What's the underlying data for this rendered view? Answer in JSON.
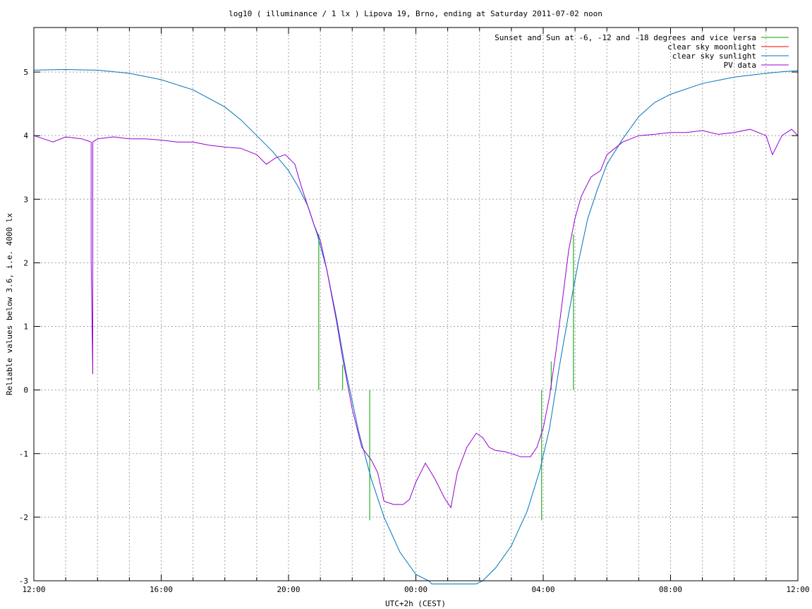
{
  "chart_data": {
    "type": "line",
    "title": "log10 ( illuminance / 1 lx ) Lipova 19, Brno, ending at Saturday 2011-07-02 noon",
    "xlabel": "UTC+2h (CEST)",
    "ylabel": "Reliable values below 3.6, i.e. 4000 lx",
    "x_unit": "hours since 2011-07-01 12:00",
    "xlim": [
      0,
      24
    ],
    "ylim": [
      -3,
      5.7
    ],
    "x_ticks": [
      {
        "x": 0,
        "label": "12:00"
      },
      {
        "x": 4,
        "label": "16:00"
      },
      {
        "x": 8,
        "label": "20:00"
      },
      {
        "x": 12,
        "label": "00:00"
      },
      {
        "x": 16,
        "label": "04:00"
      },
      {
        "x": 20,
        "label": "08:00"
      },
      {
        "x": 24,
        "label": "12:00"
      }
    ],
    "x_minor_step": 1,
    "y_ticks": [
      {
        "y": -3,
        "label": "-3"
      },
      {
        "y": -2,
        "label": "-2"
      },
      {
        "y": -1,
        "label": "-1"
      },
      {
        "y": 0,
        "label": "0"
      },
      {
        "y": 1,
        "label": "1"
      },
      {
        "y": 2,
        "label": "2"
      },
      {
        "y": 3,
        "label": "3"
      },
      {
        "y": 4,
        "label": "4"
      },
      {
        "y": 5,
        "label": "5"
      }
    ],
    "grid": true,
    "legend_position": "top-right",
    "series": [
      {
        "name": "Sunset and Sun at -6, -12 and -18 degrees and vice versa",
        "color": "#00a000",
        "kind": "vertical-markers",
        "markers": [
          {
            "x": 8.95,
            "y0": 0,
            "y1": 2.45
          },
          {
            "x": 9.7,
            "y0": 0,
            "y1": 0.4
          },
          {
            "x": 10.55,
            "y0": -2.05,
            "y1": 0
          },
          {
            "x": 15.95,
            "y0": -2.05,
            "y1": 0
          },
          {
            "x": 16.25,
            "y0": 0,
            "y1": 0.45
          },
          {
            "x": 16.95,
            "y0": 0,
            "y1": 2.45
          }
        ]
      },
      {
        "name": "clear sky moonlight",
        "color": "#ff0000",
        "x": [],
        "y": []
      },
      {
        "name": "clear sky sunlight",
        "color": "#0072bd",
        "x": [
          0,
          1,
          2,
          3,
          4,
          5,
          6,
          6.5,
          7,
          7.5,
          8,
          8.3,
          8.6,
          8.9,
          9.2,
          9.5,
          9.8,
          10.2,
          10.6,
          11,
          11.5,
          12,
          12.4,
          12.5,
          13.9,
          14.1,
          14.5,
          15,
          15.5,
          15.9,
          16.2,
          16.5,
          16.8,
          17.1,
          17.4,
          17.7,
          18,
          18.5,
          19,
          19.5,
          20,
          21,
          22,
          23,
          23.6,
          24
        ],
        "y": [
          5.03,
          5.04,
          5.03,
          4.98,
          4.88,
          4.72,
          4.45,
          4.25,
          4.0,
          3.75,
          3.45,
          3.2,
          2.9,
          2.45,
          1.9,
          1.15,
          0.3,
          -0.65,
          -1.4,
          -2.0,
          -2.55,
          -2.9,
          -3.0,
          -3.05,
          -3.05,
          -3.0,
          -2.8,
          -2.45,
          -1.9,
          -1.25,
          -0.6,
          0.35,
          1.2,
          2.0,
          2.7,
          3.15,
          3.55,
          3.95,
          4.3,
          4.52,
          4.65,
          4.82,
          4.92,
          4.98,
          5.01,
          5.02
        ]
      },
      {
        "name": "PV data",
        "color": "#9400d3",
        "x": [
          0,
          0.3,
          0.6,
          1,
          1.5,
          1.8,
          1.8,
          1.85,
          1.85,
          2,
          2.5,
          3,
          3.5,
          4,
          4.5,
          5,
          5.5,
          6,
          6.5,
          7,
          7.3,
          7.6,
          7.9,
          8.2,
          8.4,
          8.6,
          8.8,
          9.0,
          9.2,
          9.5,
          9.7,
          10.0,
          10.3,
          10.6,
          10.8,
          11,
          11.3,
          11.6,
          11.8,
          12,
          12.3,
          12.6,
          12.9,
          13.1,
          13.3,
          13.6,
          13.9,
          14.1,
          14.3,
          14.5,
          14.8,
          15,
          15.3,
          15.6,
          15.8,
          16,
          16.2,
          16.4,
          16.6,
          16.8,
          17.0,
          17.2,
          17.5,
          17.8,
          18,
          18.5,
          19,
          19.5,
          20,
          20.5,
          21,
          21.5,
          22,
          22.5,
          23,
          23.2,
          23.5,
          23.8,
          24
        ],
        "y": [
          4.0,
          3.95,
          3.9,
          3.98,
          3.95,
          3.9,
          2.05,
          0.25,
          3.9,
          3.95,
          3.98,
          3.95,
          3.95,
          3.93,
          3.9,
          3.9,
          3.85,
          3.82,
          3.8,
          3.7,
          3.55,
          3.65,
          3.7,
          3.55,
          3.2,
          2.9,
          2.6,
          2.35,
          1.9,
          1.1,
          0.5,
          -0.3,
          -0.9,
          -1.1,
          -1.3,
          -1.75,
          -1.8,
          -1.8,
          -1.72,
          -1.45,
          -1.15,
          -1.4,
          -1.7,
          -1.85,
          -1.3,
          -0.9,
          -0.68,
          -0.75,
          -0.9,
          -0.95,
          -0.97,
          -1.0,
          -1.05,
          -1.05,
          -0.9,
          -0.6,
          -0.1,
          0.6,
          1.4,
          2.2,
          2.7,
          3.05,
          3.35,
          3.45,
          3.7,
          3.9,
          4.0,
          4.02,
          4.05,
          4.05,
          4.08,
          4.02,
          4.05,
          4.1,
          4.0,
          3.7,
          4.0,
          4.1,
          4.0
        ]
      }
    ]
  }
}
